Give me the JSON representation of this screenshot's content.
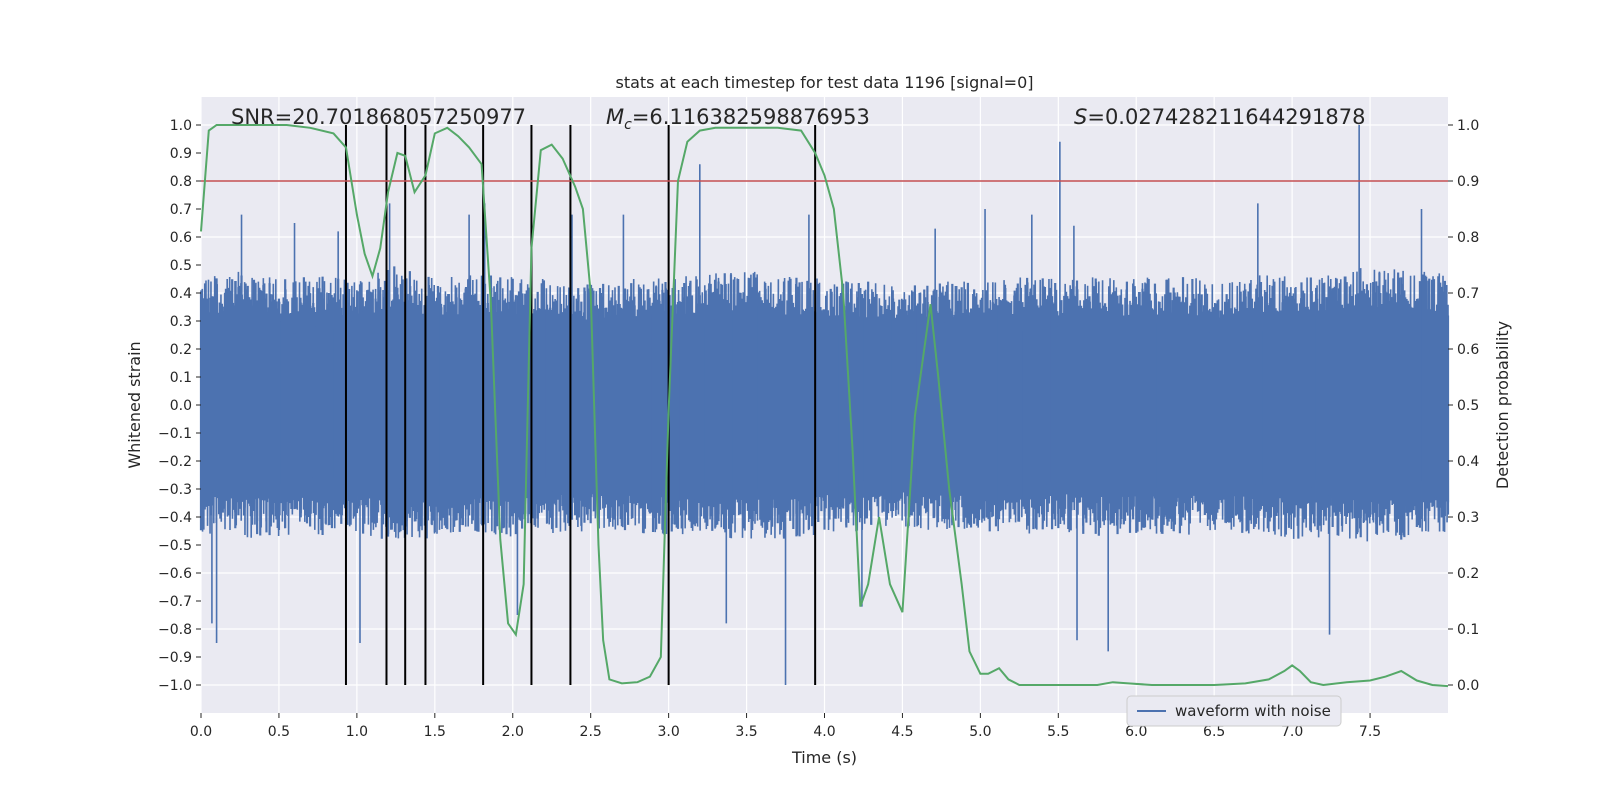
{
  "chart_data": {
    "type": "line",
    "title": "stats at each timestep for test data 1196 [signal=0]",
    "xlabel": "Time (s)",
    "ylabel": "Whitened strain",
    "y2label": "Detection probability",
    "xlim": [
      0.0,
      8.0
    ],
    "ylim": [
      -1.1,
      1.1
    ],
    "y2lim": [
      -0.05,
      1.05
    ],
    "xticks": [
      "0.0",
      "0.5",
      "1.0",
      "1.5",
      "2.0",
      "2.5",
      "3.0",
      "3.5",
      "4.0",
      "4.5",
      "5.0",
      "5.5",
      "6.0",
      "6.5",
      "7.0",
      "7.5"
    ],
    "yticks": [
      "1.0",
      "0.9",
      "0.8",
      "0.7",
      "0.6",
      "0.5",
      "0.4",
      "0.3",
      "0.2",
      "0.1",
      "0.0",
      "-0.1",
      "-0.2",
      "-0.3",
      "-0.4",
      "-0.5",
      "-0.6",
      "-0.7",
      "-0.8",
      "-0.9",
      "-1.0"
    ],
    "y2ticks": [
      "1.0",
      "0.9",
      "0.8",
      "0.7",
      "0.6",
      "0.5",
      "0.4",
      "0.3",
      "0.2",
      "0.1",
      "0.0"
    ],
    "grid": true,
    "legend_position": "bottom-right",
    "annotations": {
      "snr": "SNR=20.701868057250977",
      "mc_symbol": "M",
      "mc_sub": "c",
      "mc_value": "=6.116382598876953",
      "s_symbol": "S",
      "s_value": "=0.027428211644291878"
    },
    "threshold": {
      "axis": "y2",
      "value": 0.9,
      "color": "#c44e52"
    },
    "vertical_markers": [
      0.93,
      1.19,
      1.31,
      1.44,
      1.81,
      2.12,
      2.37,
      3.0,
      3.94
    ],
    "series": [
      {
        "name": "waveform with noise",
        "axis": "y",
        "color": "#4c72b0",
        "envelope_upper": [
          [
            0.0,
            0.45
          ],
          [
            0.25,
            0.48
          ],
          [
            0.5,
            0.45
          ],
          [
            0.75,
            0.47
          ],
          [
            1.0,
            0.44
          ],
          [
            1.25,
            0.5
          ],
          [
            1.5,
            0.45
          ],
          [
            1.75,
            0.47
          ],
          [
            2.0,
            0.46
          ],
          [
            2.25,
            0.45
          ],
          [
            2.5,
            0.43
          ],
          [
            2.75,
            0.45
          ],
          [
            3.0,
            0.46
          ],
          [
            3.25,
            0.47
          ],
          [
            3.5,
            0.48
          ],
          [
            3.75,
            0.46
          ],
          [
            4.0,
            0.45
          ],
          [
            4.25,
            0.45
          ],
          [
            4.5,
            0.42
          ],
          [
            4.75,
            0.45
          ],
          [
            5.0,
            0.44
          ],
          [
            5.25,
            0.46
          ],
          [
            5.5,
            0.45
          ],
          [
            5.75,
            0.46
          ],
          [
            6.0,
            0.45
          ],
          [
            6.25,
            0.47
          ],
          [
            6.5,
            0.44
          ],
          [
            6.75,
            0.46
          ],
          [
            7.0,
            0.48
          ],
          [
            7.25,
            0.47
          ],
          [
            7.5,
            0.5
          ],
          [
            7.75,
            0.48
          ],
          [
            8.0,
            0.47
          ]
        ],
        "envelope_lower": [
          [
            0.0,
            -0.46
          ],
          [
            0.25,
            -0.48
          ],
          [
            0.5,
            -0.47
          ],
          [
            0.75,
            -0.47
          ],
          [
            1.0,
            -0.46
          ],
          [
            1.25,
            -0.5
          ],
          [
            1.5,
            -0.47
          ],
          [
            1.75,
            -0.46
          ],
          [
            2.0,
            -0.47
          ],
          [
            2.25,
            -0.46
          ],
          [
            2.5,
            -0.45
          ],
          [
            2.75,
            -0.46
          ],
          [
            3.0,
            -0.47
          ],
          [
            3.25,
            -0.47
          ],
          [
            3.5,
            -0.48
          ],
          [
            3.75,
            -0.48
          ],
          [
            4.0,
            -0.46
          ],
          [
            4.25,
            -0.46
          ],
          [
            4.5,
            -0.44
          ],
          [
            4.75,
            -0.46
          ],
          [
            5.0,
            -0.45
          ],
          [
            5.25,
            -0.47
          ],
          [
            5.5,
            -0.45
          ],
          [
            5.75,
            -0.47
          ],
          [
            6.0,
            -0.46
          ],
          [
            6.25,
            -0.47
          ],
          [
            6.5,
            -0.45
          ],
          [
            6.75,
            -0.46
          ],
          [
            7.0,
            -0.48
          ],
          [
            7.25,
            -0.47
          ],
          [
            7.5,
            -0.49
          ],
          [
            7.75,
            -0.48
          ],
          [
            8.0,
            -0.47
          ]
        ],
        "peaks": [
          [
            0.07,
            -0.78
          ],
          [
            0.1,
            -0.85
          ],
          [
            0.26,
            0.68
          ],
          [
            0.6,
            0.65
          ],
          [
            0.88,
            0.62
          ],
          [
            0.93,
            0.78
          ],
          [
            1.02,
            -0.85
          ],
          [
            1.21,
            0.72
          ],
          [
            1.44,
            0.65
          ],
          [
            1.72,
            0.68
          ],
          [
            1.82,
            0.72
          ],
          [
            2.03,
            -0.75
          ],
          [
            2.38,
            0.68
          ],
          [
            2.71,
            0.68
          ],
          [
            3.2,
            0.86
          ],
          [
            3.37,
            -0.78
          ],
          [
            3.75,
            -1.0
          ],
          [
            3.9,
            0.68
          ],
          [
            4.24,
            -0.72
          ],
          [
            4.71,
            0.63
          ],
          [
            5.03,
            0.7
          ],
          [
            5.33,
            0.68
          ],
          [
            5.51,
            0.94
          ],
          [
            5.62,
            -0.84
          ],
          [
            5.6,
            0.64
          ],
          [
            5.82,
            -0.88
          ],
          [
            6.78,
            0.72
          ],
          [
            7.24,
            -0.82
          ],
          [
            7.43,
            1.0
          ],
          [
            7.83,
            0.7
          ]
        ]
      },
      {
        "name": "",
        "axis": "y2",
        "color": "#55a868",
        "points": [
          [
            0.0,
            0.81
          ],
          [
            0.05,
            0.99
          ],
          [
            0.1,
            1.0
          ],
          [
            0.3,
            1.0
          ],
          [
            0.55,
            1.0
          ],
          [
            0.7,
            0.995
          ],
          [
            0.85,
            0.985
          ],
          [
            0.93,
            0.96
          ],
          [
            1.0,
            0.84
          ],
          [
            1.05,
            0.77
          ],
          [
            1.1,
            0.73
          ],
          [
            1.15,
            0.78
          ],
          [
            1.2,
            0.88
          ],
          [
            1.26,
            0.95
          ],
          [
            1.31,
            0.945
          ],
          [
            1.37,
            0.88
          ],
          [
            1.44,
            0.91
          ],
          [
            1.5,
            0.985
          ],
          [
            1.58,
            0.995
          ],
          [
            1.65,
            0.98
          ],
          [
            1.72,
            0.96
          ],
          [
            1.8,
            0.93
          ],
          [
            1.86,
            0.68
          ],
          [
            1.92,
            0.26
          ],
          [
            1.97,
            0.11
          ],
          [
            2.02,
            0.09
          ],
          [
            2.07,
            0.18
          ],
          [
            2.12,
            0.78
          ],
          [
            2.18,
            0.955
          ],
          [
            2.25,
            0.965
          ],
          [
            2.32,
            0.94
          ],
          [
            2.4,
            0.89
          ],
          [
            2.45,
            0.85
          ],
          [
            2.5,
            0.7
          ],
          [
            2.55,
            0.25
          ],
          [
            2.58,
            0.08
          ],
          [
            2.62,
            0.01
          ],
          [
            2.7,
            0.003
          ],
          [
            2.8,
            0.005
          ],
          [
            2.88,
            0.015
          ],
          [
            2.95,
            0.05
          ],
          [
            3.0,
            0.49
          ],
          [
            3.06,
            0.9
          ],
          [
            3.12,
            0.97
          ],
          [
            3.2,
            0.99
          ],
          [
            3.3,
            0.995
          ],
          [
            3.4,
            0.995
          ],
          [
            3.55,
            0.995
          ],
          [
            3.7,
            0.995
          ],
          [
            3.85,
            0.99
          ],
          [
            3.94,
            0.95
          ],
          [
            4.0,
            0.91
          ],
          [
            4.06,
            0.85
          ],
          [
            4.12,
            0.7
          ],
          [
            4.18,
            0.42
          ],
          [
            4.23,
            0.14
          ],
          [
            4.28,
            0.18
          ],
          [
            4.35,
            0.3
          ],
          [
            4.42,
            0.18
          ],
          [
            4.5,
            0.13
          ],
          [
            4.58,
            0.48
          ],
          [
            4.64,
            0.6
          ],
          [
            4.68,
            0.68
          ],
          [
            4.73,
            0.55
          ],
          [
            4.8,
            0.35
          ],
          [
            4.88,
            0.18
          ],
          [
            4.93,
            0.06
          ],
          [
            5.0,
            0.02
          ],
          [
            5.05,
            0.02
          ],
          [
            5.12,
            0.03
          ],
          [
            5.18,
            0.01
          ],
          [
            5.25,
            0.0
          ],
          [
            5.5,
            0.0
          ],
          [
            5.75,
            0.0
          ],
          [
            5.85,
            0.005
          ],
          [
            5.95,
            0.003
          ],
          [
            6.1,
            0.0
          ],
          [
            6.3,
            0.0
          ],
          [
            6.5,
            0.0
          ],
          [
            6.7,
            0.003
          ],
          [
            6.85,
            0.01
          ],
          [
            6.95,
            0.025
          ],
          [
            7.0,
            0.035
          ],
          [
            7.05,
            0.025
          ],
          [
            7.12,
            0.005
          ],
          [
            7.2,
            0.0
          ],
          [
            7.35,
            0.005
          ],
          [
            7.5,
            0.008
          ],
          [
            7.6,
            0.015
          ],
          [
            7.7,
            0.025
          ],
          [
            7.8,
            0.008
          ],
          [
            7.9,
            0.0
          ],
          [
            8.0,
            -0.002
          ]
        ]
      }
    ]
  }
}
